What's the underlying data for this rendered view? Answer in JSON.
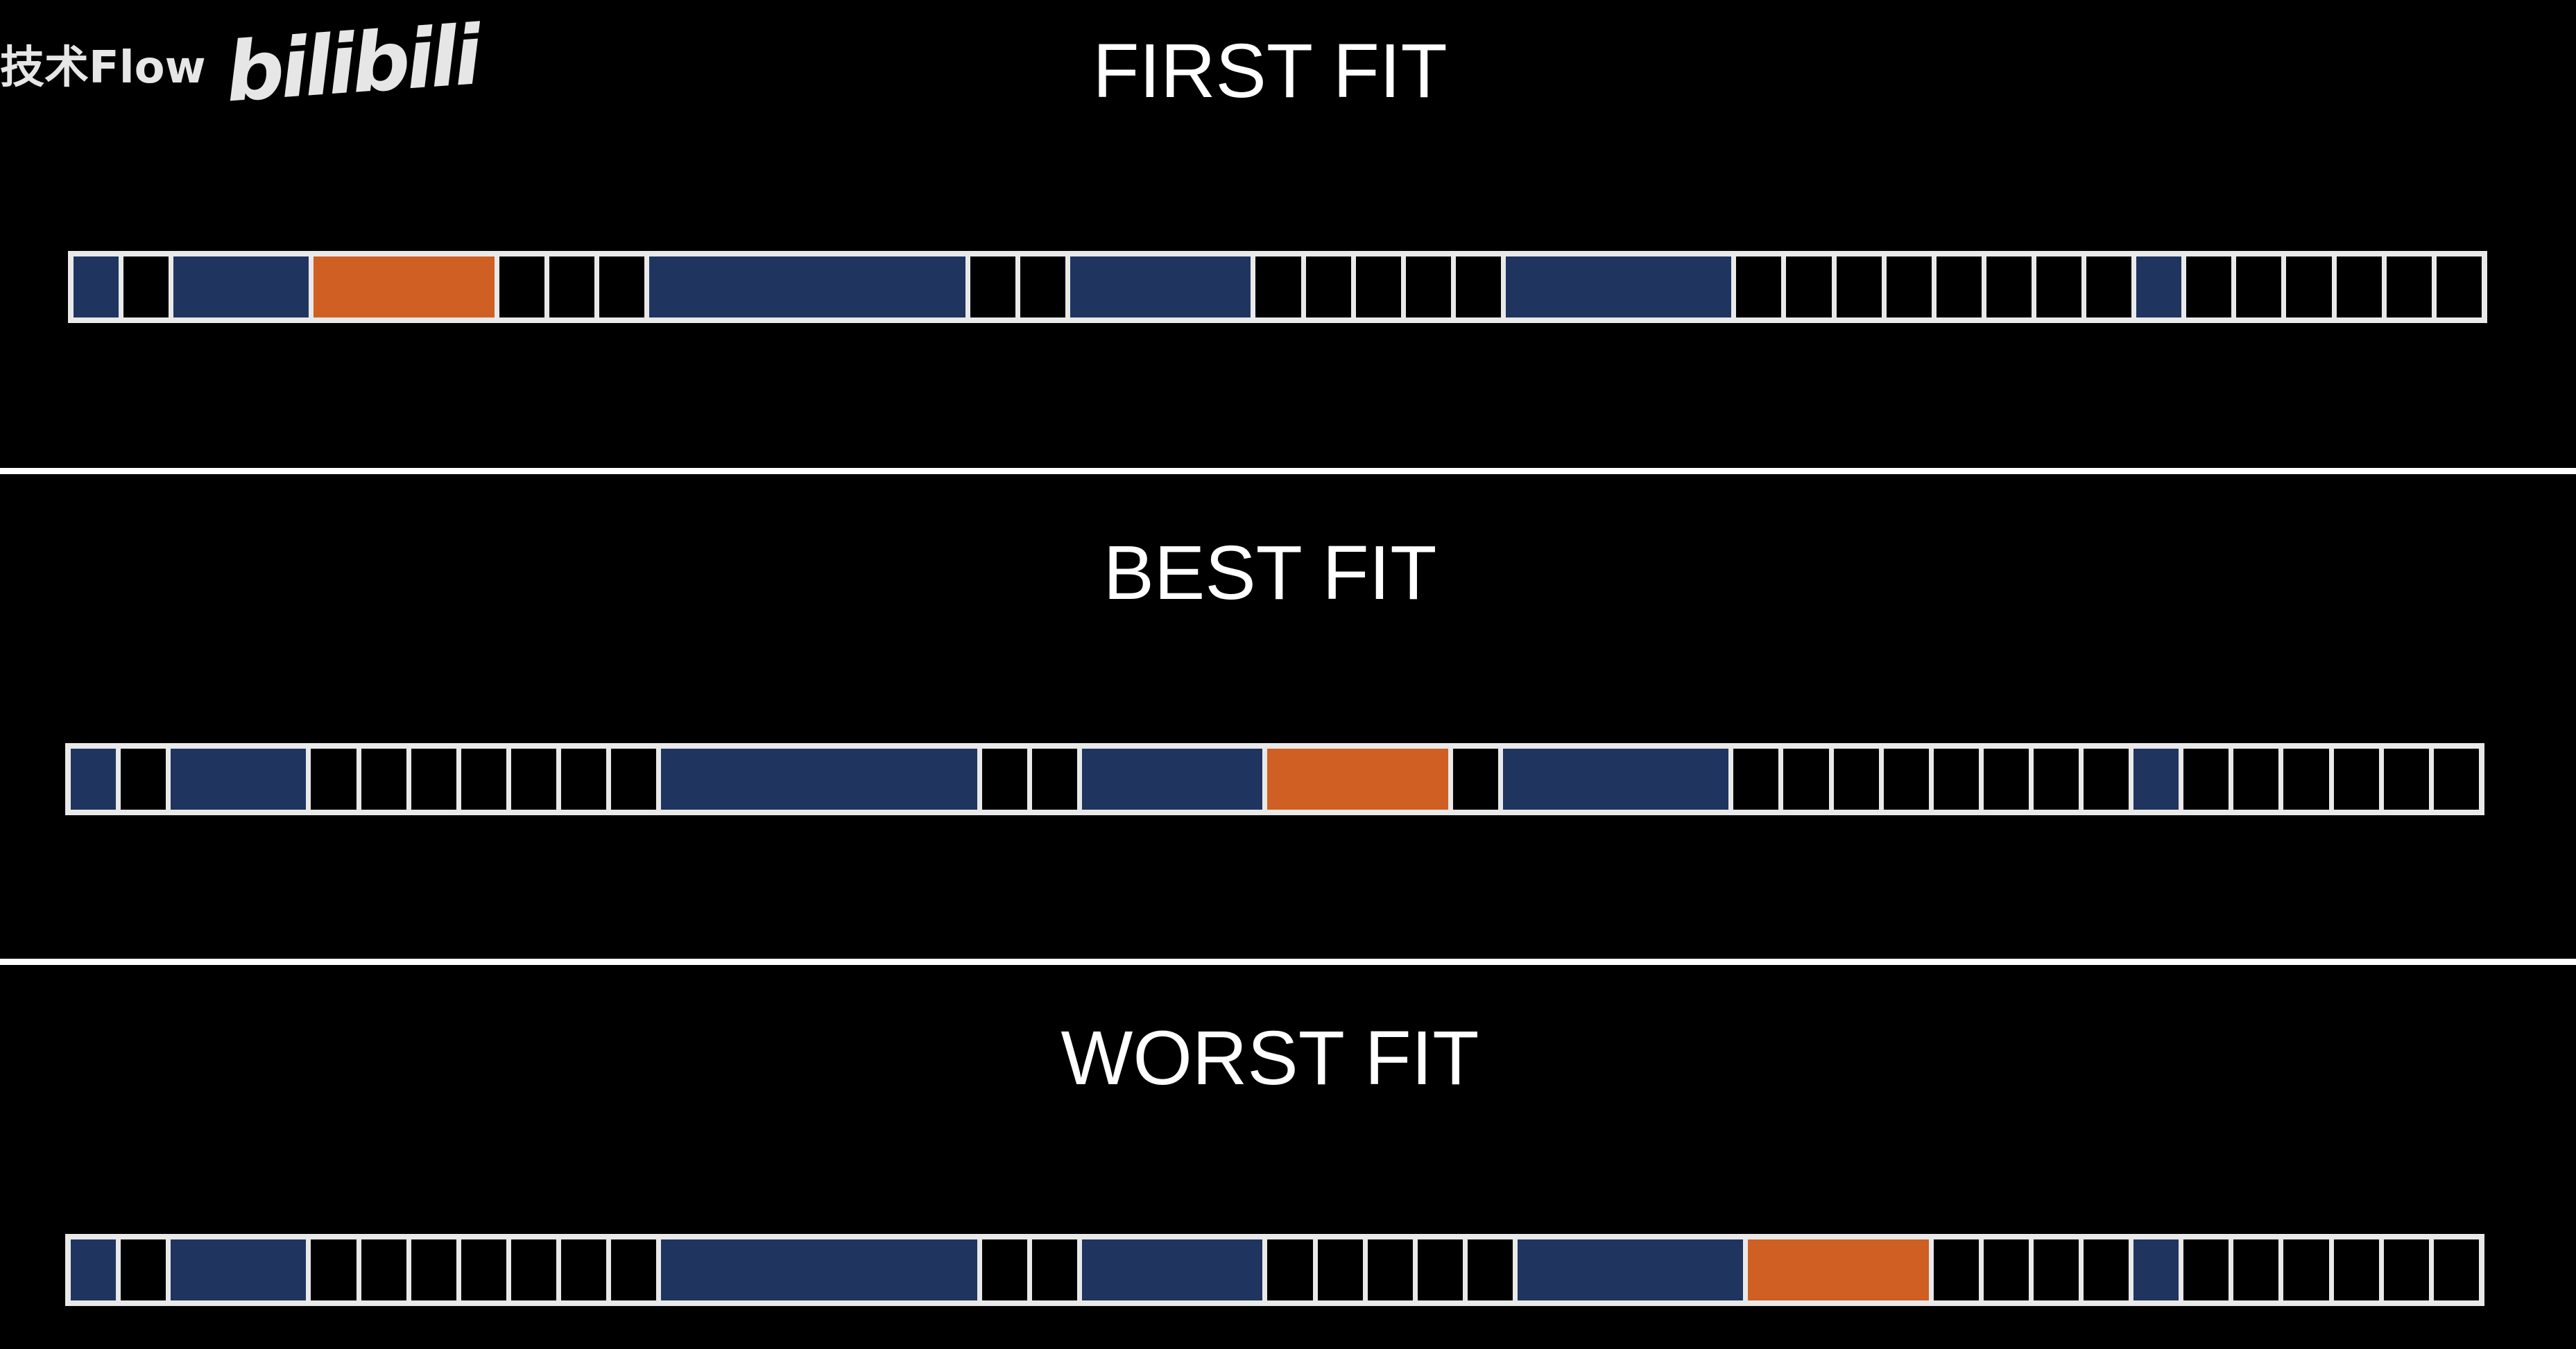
{
  "watermark": {
    "channel": "技术Flow",
    "platform_logo": "bilibili"
  },
  "colors": {
    "used": "#1f3560",
    "new": "#cf5f22",
    "free": "#000000",
    "border": "#e9e9e9"
  },
  "panels": [
    {
      "title": "FIRST FIT",
      "blocks": [
        {
          "state": "used",
          "units": 1
        },
        {
          "state": "free",
          "units": 1
        },
        {
          "state": "used",
          "units": 3
        },
        {
          "state": "new",
          "units": 4
        },
        {
          "state": "free",
          "units": 1
        },
        {
          "state": "free",
          "units": 1
        },
        {
          "state": "free",
          "units": 1
        },
        {
          "state": "used",
          "units": 7
        },
        {
          "state": "free",
          "units": 1
        },
        {
          "state": "free",
          "units": 1
        },
        {
          "state": "used",
          "units": 4
        },
        {
          "state": "free",
          "units": 1
        },
        {
          "state": "free",
          "units": 1
        },
        {
          "state": "free",
          "units": 1
        },
        {
          "state": "free",
          "units": 1
        },
        {
          "state": "free",
          "units": 1
        },
        {
          "state": "used",
          "units": 5
        },
        {
          "state": "free",
          "units": 1
        },
        {
          "state": "free",
          "units": 1
        },
        {
          "state": "free",
          "units": 1
        },
        {
          "state": "free",
          "units": 1
        },
        {
          "state": "free",
          "units": 1
        },
        {
          "state": "free",
          "units": 1
        },
        {
          "state": "free",
          "units": 1
        },
        {
          "state": "free",
          "units": 1
        },
        {
          "state": "used",
          "units": 1
        },
        {
          "state": "free",
          "units": 1
        },
        {
          "state": "free",
          "units": 1
        },
        {
          "state": "free",
          "units": 1
        },
        {
          "state": "free",
          "units": 1
        },
        {
          "state": "free",
          "units": 1
        },
        {
          "state": "free",
          "units": 1
        }
      ]
    },
    {
      "title": "BEST FIT",
      "blocks": [
        {
          "state": "used",
          "units": 1
        },
        {
          "state": "free",
          "units": 1
        },
        {
          "state": "used",
          "units": 3
        },
        {
          "state": "free",
          "units": 1
        },
        {
          "state": "free",
          "units": 1
        },
        {
          "state": "free",
          "units": 1
        },
        {
          "state": "free",
          "units": 1
        },
        {
          "state": "free",
          "units": 1
        },
        {
          "state": "free",
          "units": 1
        },
        {
          "state": "free",
          "units": 1
        },
        {
          "state": "used",
          "units": 7
        },
        {
          "state": "free",
          "units": 1
        },
        {
          "state": "free",
          "units": 1
        },
        {
          "state": "used",
          "units": 4
        },
        {
          "state": "new",
          "units": 4
        },
        {
          "state": "free",
          "units": 1
        },
        {
          "state": "used",
          "units": 5
        },
        {
          "state": "free",
          "units": 1
        },
        {
          "state": "free",
          "units": 1
        },
        {
          "state": "free",
          "units": 1
        },
        {
          "state": "free",
          "units": 1
        },
        {
          "state": "free",
          "units": 1
        },
        {
          "state": "free",
          "units": 1
        },
        {
          "state": "free",
          "units": 1
        },
        {
          "state": "free",
          "units": 1
        },
        {
          "state": "used",
          "units": 1
        },
        {
          "state": "free",
          "units": 1
        },
        {
          "state": "free",
          "units": 1
        },
        {
          "state": "free",
          "units": 1
        },
        {
          "state": "free",
          "units": 1
        },
        {
          "state": "free",
          "units": 1
        },
        {
          "state": "free",
          "units": 1
        }
      ]
    },
    {
      "title": "WORST FIT",
      "blocks": [
        {
          "state": "used",
          "units": 1
        },
        {
          "state": "free",
          "units": 1
        },
        {
          "state": "used",
          "units": 3
        },
        {
          "state": "free",
          "units": 1
        },
        {
          "state": "free",
          "units": 1
        },
        {
          "state": "free",
          "units": 1
        },
        {
          "state": "free",
          "units": 1
        },
        {
          "state": "free",
          "units": 1
        },
        {
          "state": "free",
          "units": 1
        },
        {
          "state": "free",
          "units": 1
        },
        {
          "state": "used",
          "units": 7
        },
        {
          "state": "free",
          "units": 1
        },
        {
          "state": "free",
          "units": 1
        },
        {
          "state": "used",
          "units": 4
        },
        {
          "state": "free",
          "units": 1
        },
        {
          "state": "free",
          "units": 1
        },
        {
          "state": "free",
          "units": 1
        },
        {
          "state": "free",
          "units": 1
        },
        {
          "state": "free",
          "units": 1
        },
        {
          "state": "used",
          "units": 5
        },
        {
          "state": "new",
          "units": 4
        },
        {
          "state": "free",
          "units": 1
        },
        {
          "state": "free",
          "units": 1
        },
        {
          "state": "free",
          "units": 1
        },
        {
          "state": "free",
          "units": 1
        },
        {
          "state": "used",
          "units": 1
        },
        {
          "state": "free",
          "units": 1
        },
        {
          "state": "free",
          "units": 1
        },
        {
          "state": "free",
          "units": 1
        },
        {
          "state": "free",
          "units": 1
        },
        {
          "state": "free",
          "units": 1
        },
        {
          "state": "free",
          "units": 1
        }
      ]
    }
  ]
}
